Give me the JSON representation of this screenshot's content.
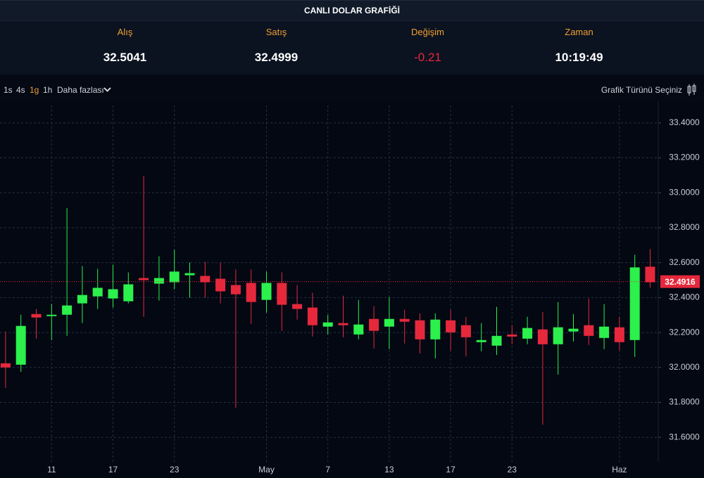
{
  "header": {
    "title": "CANLI DOLAR GRAFİĞİ"
  },
  "stats": [
    {
      "label": "Alış",
      "value": 32.5041
    },
    {
      "label": "Satış",
      "value": 32.4999
    },
    {
      "label": "Değişim",
      "value": -0.21
    },
    {
      "label": "Zaman",
      "value": "10:19:49"
    }
  ],
  "toolbar": {
    "intervals": [
      "1s",
      "4s",
      "1g",
      "1h"
    ],
    "more": "Daha fazlası",
    "chart_type": "Grafik Türünü Seçiniz"
  },
  "chart_data": {
    "type": "candlestick",
    "categories": [
      null,
      null,
      null,
      "11",
      null,
      null,
      null,
      "17",
      null,
      null,
      null,
      "23",
      null,
      null,
      null,
      null,
      null,
      "May",
      null,
      null,
      null,
      "7",
      null,
      null,
      null,
      "13",
      null,
      null,
      null,
      "17",
      null,
      null,
      null,
      "23",
      null,
      null,
      null,
      null,
      null,
      null,
      "Haz",
      null,
      null
    ],
    "open": [
      32.024,
      32.016,
      32.306,
      32.294,
      32.302,
      32.367,
      32.407,
      32.395,
      32.379,
      32.512,
      32.48,
      32.488,
      32.528,
      32.524,
      32.508,
      32.472,
      32.484,
      32.387,
      32.484,
      32.363,
      32.343,
      32.234,
      32.254,
      32.189,
      32.278,
      32.234,
      32.278,
      32.27,
      32.161,
      32.27,
      32.242,
      32.145,
      32.125,
      32.189,
      32.165,
      32.218,
      32.133,
      32.206,
      32.242,
      32.169,
      32.23,
      32.157,
      32.577
    ],
    "high": [
      32.206,
      32.302,
      32.335,
      32.363,
      32.912,
      32.581,
      32.565,
      32.589,
      32.544,
      33.097,
      32.637,
      32.674,
      32.601,
      32.605,
      32.601,
      32.561,
      32.561,
      32.549,
      32.545,
      32.472,
      32.427,
      32.302,
      32.411,
      32.387,
      32.351,
      32.403,
      32.331,
      32.31,
      32.31,
      32.331,
      32.29,
      32.254,
      32.347,
      32.242,
      32.29,
      32.318,
      32.375,
      32.306,
      32.395,
      32.363,
      32.29,
      32.645,
      32.678
    ],
    "low": [
      31.883,
      31.975,
      32.165,
      32.157,
      32.181,
      32.254,
      32.335,
      32.343,
      32.367,
      32.29,
      32.383,
      32.448,
      32.399,
      32.399,
      32.367,
      31.77,
      32.25,
      32.314,
      32.21,
      32.274,
      32.177,
      32.189,
      32.173,
      32.161,
      32.109,
      32.105,
      32.137,
      32.08,
      32.052,
      32.097,
      32.064,
      32.093,
      32.072,
      32.133,
      32.133,
      31.673,
      31.959,
      32.149,
      32.129,
      32.105,
      32.097,
      32.06,
      32.456
    ],
    "close": [
      32.0,
      32.238,
      32.286,
      32.302,
      32.355,
      32.415,
      32.456,
      32.448,
      32.476,
      32.5,
      32.512,
      32.549,
      32.54,
      32.488,
      32.436,
      32.419,
      32.375,
      32.484,
      32.359,
      32.335,
      32.242,
      32.258,
      32.242,
      32.246,
      32.21,
      32.278,
      32.262,
      32.161,
      32.274,
      32.201,
      32.173,
      32.157,
      32.181,
      32.177,
      32.226,
      32.133,
      32.23,
      32.222,
      32.181,
      32.234,
      32.145,
      32.573,
      32.488
    ],
    "up_color": "#2cf04c",
    "down_color": "#e6283c",
    "ylim": [
      31.46,
      33.5
    ],
    "yticks": [
      {
        "value": 31.6,
        "label": "31.6000"
      },
      {
        "value": 31.8,
        "label": "31.8000"
      },
      {
        "value": 32.0,
        "label": "32.0000"
      },
      {
        "value": 32.2,
        "label": "32.2000"
      },
      {
        "value": 32.4,
        "label": "32.4000"
      },
      {
        "value": 32.6,
        "label": "32.6000"
      },
      {
        "value": 32.8,
        "label": "32.8000"
      },
      {
        "value": 33.0,
        "label": "33.0000"
      },
      {
        "value": 33.2,
        "label": "33.2000"
      },
      {
        "value": 33.4,
        "label": "33.4000"
      }
    ],
    "grid": true,
    "last_price": 32.4916
  }
}
